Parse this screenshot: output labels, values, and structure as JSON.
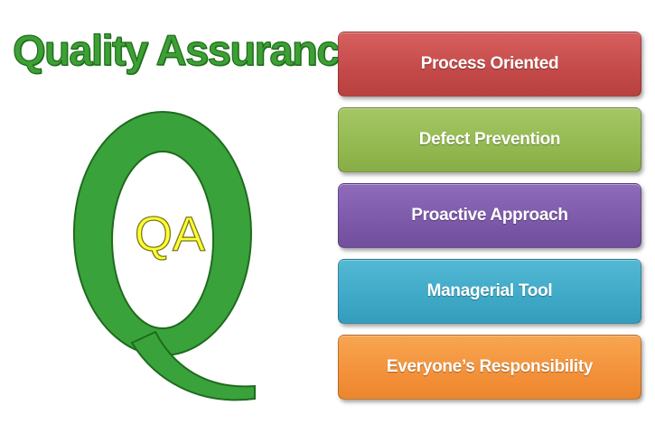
{
  "title": "Quality Assurance",
  "logo": {
    "letter": "Q",
    "inner_text": "QA",
    "colors": {
      "q_fill": "#3aa23a",
      "q_stroke": "#1e6b1e",
      "inner_fill": "#ffff33",
      "inner_stroke": "#7a7a1a"
    }
  },
  "items": [
    {
      "label": "Process Oriented",
      "color": "#c34a48"
    },
    {
      "label": "Defect Prevention",
      "color": "#93b950"
    },
    {
      "label": "Proactive Approach",
      "color": "#7c59a9"
    },
    {
      "label": "Managerial Tool",
      "color": "#3ea9c7"
    },
    {
      "label": "Everyone’s Responsibility",
      "color": "#f3913a"
    }
  ]
}
